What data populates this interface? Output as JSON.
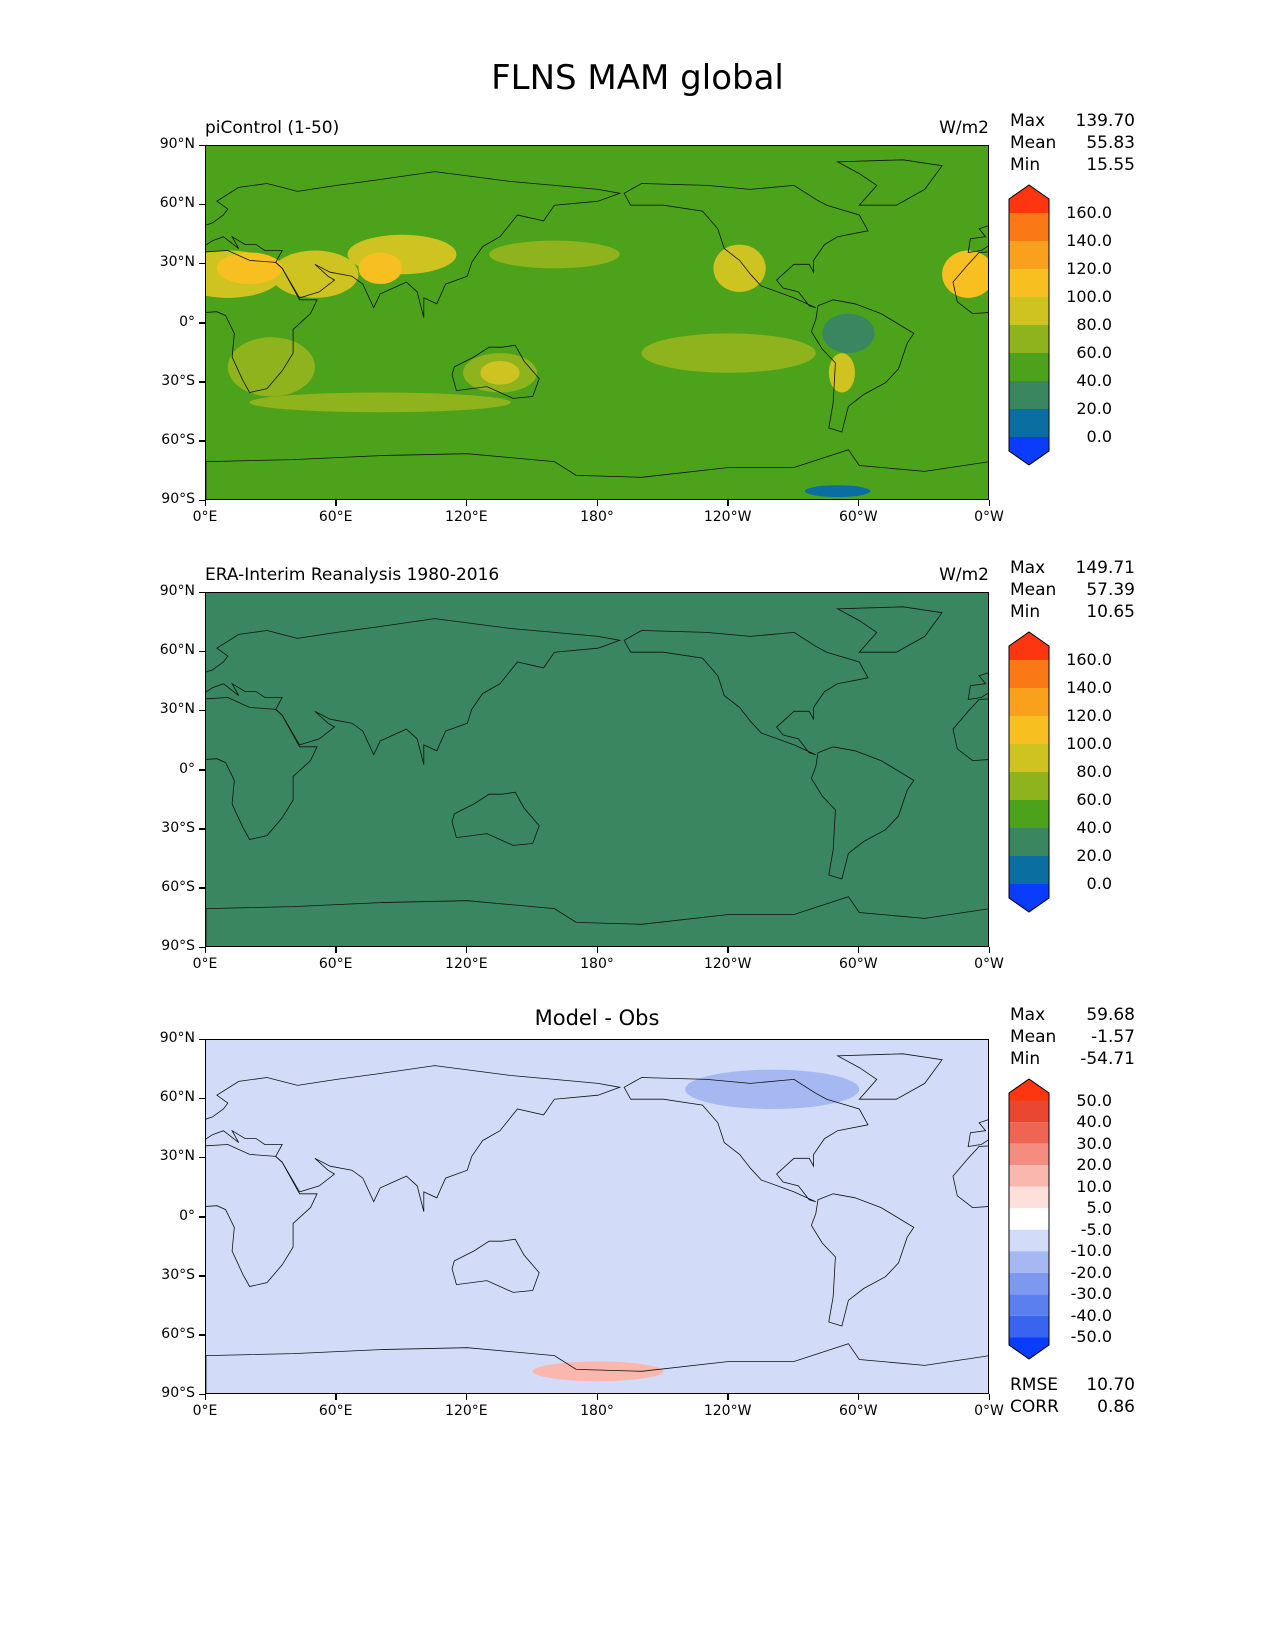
{
  "title": "FLNS MAM global",
  "colors": {
    "abs_levels": [
      "#0a3cfe",
      "#0a6ea0",
      "#3a8660",
      "#4da21b",
      "#8fb31c",
      "#cfc322",
      "#f7bf1f",
      "#f9a01c",
      "#fb7816",
      "#fe3610"
    ],
    "diff_levels": [
      "#0a3cfe",
      "#3864f0",
      "#5b7fee",
      "#7d98ef",
      "#a6b8f2",
      "#d2dcf8",
      "#ffffff",
      "#fde0dc",
      "#f9b7ae",
      "#f48c80",
      "#ef6553",
      "#ea4630",
      "#fe3610"
    ]
  },
  "panels": [
    {
      "id": "model",
      "title_left": "piControl (1-50)",
      "title_right": "W/m2",
      "title_center": "",
      "stats": [
        {
          "label": "Max",
          "value": "139.70"
        },
        {
          "label": "Mean",
          "value": "55.83"
        },
        {
          "label": "Min",
          "value": "15.55"
        }
      ],
      "colorbar_labels": [
        "160.0",
        "140.0",
        "120.0",
        "100.0",
        "80.0",
        "60.0",
        "40.0",
        "20.0",
        "0.0"
      ],
      "extra_stats": []
    },
    {
      "id": "obs",
      "title_left": "ERA-Interim Reanalysis 1980-2016",
      "title_right": "W/m2",
      "title_center": "",
      "stats": [
        {
          "label": "Max",
          "value": "149.71"
        },
        {
          "label": "Mean",
          "value": "57.39"
        },
        {
          "label": "Min",
          "value": "10.65"
        }
      ],
      "colorbar_labels": [
        "160.0",
        "140.0",
        "120.0",
        "100.0",
        "80.0",
        "60.0",
        "40.0",
        "20.0",
        "0.0"
      ],
      "extra_stats": []
    },
    {
      "id": "diff",
      "title_left": "",
      "title_right": "",
      "title_center": "Model - Obs",
      "stats": [
        {
          "label": "Max",
          "value": "59.68"
        },
        {
          "label": "Mean",
          "value": "-1.57"
        },
        {
          "label": "Min",
          "value": "-54.71"
        }
      ],
      "colorbar_labels": [
        "50.0",
        "40.0",
        "30.0",
        "20.0",
        "10.0",
        "5.0",
        "-5.0",
        "-10.0",
        "-20.0",
        "-30.0",
        "-40.0",
        "-50.0"
      ],
      "extra_stats": [
        {
          "label": "RMSE",
          "value": "10.70"
        },
        {
          "label": "CORR",
          "value": "0.86"
        }
      ]
    }
  ],
  "axes": {
    "yticks": [
      "90°N",
      "60°N",
      "30°N",
      "0°",
      "30°S",
      "60°S",
      "90°S"
    ],
    "xticks": [
      "0°E",
      "60°E",
      "120°E",
      "180°",
      "120°W",
      "60°W",
      "0°W"
    ]
  },
  "chart_data": [
    {
      "type": "heatmap",
      "title": "piControl (1-50)",
      "units": "W/m2",
      "projection": "equirectangular",
      "xlim": [
        0,
        360
      ],
      "ylim": [
        -90,
        90
      ],
      "levels": [
        0,
        20,
        40,
        60,
        80,
        100,
        120,
        140,
        160
      ],
      "stats": {
        "max": 139.7,
        "mean": 55.83,
        "min": 15.55
      }
    },
    {
      "type": "heatmap",
      "title": "ERA-Interim Reanalysis 1980-2016",
      "units": "W/m2",
      "projection": "equirectangular",
      "xlim": [
        0,
        360
      ],
      "ylim": [
        -90,
        90
      ],
      "levels": [
        0,
        20,
        40,
        60,
        80,
        100,
        120,
        140,
        160
      ],
      "stats": {
        "max": 149.71,
        "mean": 57.39,
        "min": 10.65
      }
    },
    {
      "type": "heatmap",
      "title": "Model - Obs",
      "projection": "equirectangular",
      "xlim": [
        0,
        360
      ],
      "ylim": [
        -90,
        90
      ],
      "levels": [
        -50,
        -40,
        -30,
        -20,
        -10,
        -5,
        5,
        10,
        20,
        30,
        40,
        50
      ],
      "stats": {
        "max": 59.68,
        "mean": -1.57,
        "min": -54.71,
        "rmse": 10.7,
        "corr": 0.86
      }
    }
  ]
}
